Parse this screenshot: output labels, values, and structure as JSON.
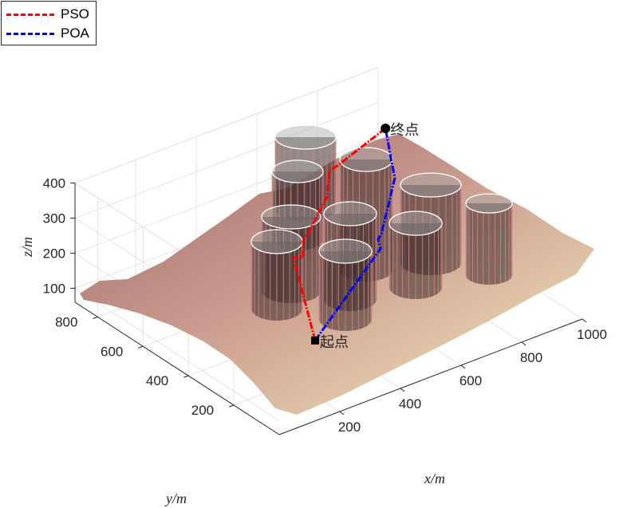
{
  "chart_data": {
    "type": "3d-line-surface",
    "xlabel": "x/m",
    "ylabel": "y/m",
    "zlabel": "z/m",
    "xlim": [
      0,
      1000
    ],
    "ylim": [
      0,
      900
    ],
    "zlim": [
      60,
      400
    ],
    "xticks": [
      "200",
      "400",
      "600",
      "800",
      "1000"
    ],
    "yticks": [
      "200",
      "400",
      "600",
      "800"
    ],
    "zticks": [
      "100",
      "200",
      "300",
      "400"
    ],
    "grid": true,
    "legend": {
      "placement": "top-left",
      "entries": [
        "PSO",
        "POA"
      ]
    },
    "series": [
      {
        "name": "PSO",
        "color": "#ff0000",
        "style": "dash-dot",
        "points": [
          [
            275,
            209,
            150
          ],
          [
            473,
            569,
            170
          ],
          [
            493,
            554,
            170
          ],
          [
            536,
            610,
            180
          ],
          [
            567,
            628,
            185
          ],
          [
            703,
            729,
            200
          ],
          [
            781,
            823,
            210
          ],
          [
            808,
            823,
            215
          ],
          [
            977,
            837,
            260
          ]
        ]
      },
      {
        "name": "POA",
        "color": "#0000ff",
        "style": "dash-dot",
        "points": [
          [
            275,
            209,
            150
          ],
          [
            671,
            450,
            180
          ],
          [
            691,
            487,
            185
          ],
          [
            710,
            498,
            190
          ],
          [
            883,
            670,
            220
          ],
          [
            924,
            743,
            235
          ],
          [
            977,
            837,
            260
          ]
        ]
      }
    ],
    "annotations": [
      {
        "text": "起点",
        "at": "start"
      },
      {
        "text": "终点",
        "at": "end"
      }
    ]
  }
}
